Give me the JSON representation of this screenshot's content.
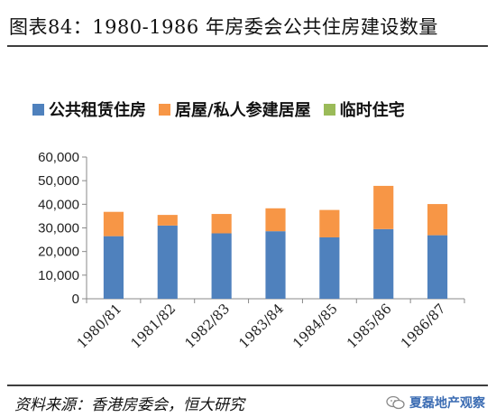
{
  "title": "图表84：1980-1986 年房委会公共住房建设数量",
  "source": "资料来源：香港房委会，恒大研究",
  "watermark": "夏磊地产观察",
  "colors": {
    "public_rental": "#4f81bd",
    "home_ownership": "#f79646",
    "temporary": "#9bbb59"
  },
  "icons": {
    "watermark": "wechat-icon"
  },
  "chart_data": {
    "type": "bar",
    "stacked": true,
    "categories": [
      "1980/81",
      "1981/82",
      "1982/83",
      "1983/84",
      "1984/85",
      "1985/86",
      "1986/87"
    ],
    "series": [
      {
        "name": "公共租赁住房",
        "values": [
          26500,
          31000,
          27700,
          28600,
          26000,
          29500,
          26900
        ]
      },
      {
        "name": "居屋/私人参建居屋",
        "values": [
          10300,
          4500,
          8200,
          9700,
          11600,
          18300,
          13200
        ]
      },
      {
        "name": "临时住宅",
        "values": [
          0,
          0,
          0,
          0,
          0,
          0,
          0
        ]
      }
    ],
    "ylim": [
      0,
      60000
    ],
    "yticks": [
      "0",
      "10,000",
      "20,000",
      "30,000",
      "40,000",
      "50,000",
      "60,000"
    ],
    "legend_position": "top",
    "grid": false
  }
}
